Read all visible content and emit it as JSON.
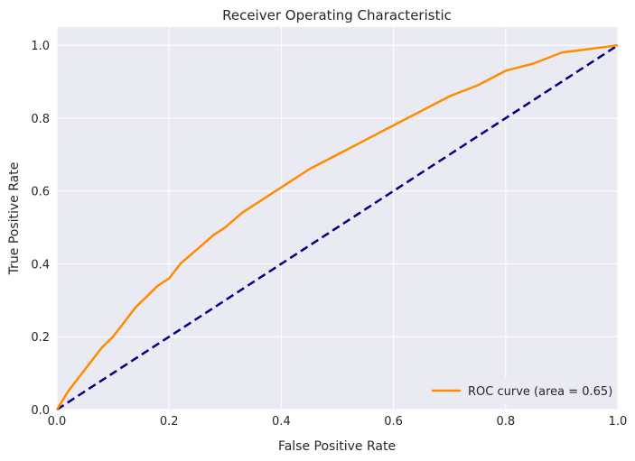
{
  "chart_data": {
    "type": "line",
    "title": "Receiver Operating Characteristic",
    "xlabel": "False Positive Rate",
    "ylabel": "True Positive Rate",
    "xlim": [
      0.0,
      1.0
    ],
    "ylim": [
      0.0,
      1.05
    ],
    "x_ticks": [
      0.0,
      0.2,
      0.4,
      0.6,
      0.8,
      1.0
    ],
    "y_ticks": [
      0.0,
      0.2,
      0.4,
      0.6,
      0.8,
      1.0
    ],
    "x_tick_labels": [
      "0.0",
      "0.2",
      "0.4",
      "0.6",
      "0.8",
      "1.0"
    ],
    "y_tick_labels": [
      "0.0",
      "0.2",
      "0.4",
      "0.6",
      "0.8",
      "1.0"
    ],
    "grid": true,
    "legend_position": "lower-right",
    "series": [
      {
        "name": "ROC curve (area = 0.65)",
        "color": "#ff8c00",
        "style": "solid",
        "x": [
          0.0,
          0.02,
          0.04,
          0.06,
          0.08,
          0.1,
          0.12,
          0.14,
          0.16,
          0.18,
          0.2,
          0.22,
          0.25,
          0.28,
          0.3,
          0.33,
          0.36,
          0.4,
          0.45,
          0.5,
          0.55,
          0.6,
          0.65,
          0.7,
          0.75,
          0.8,
          0.85,
          0.9,
          0.95,
          1.0
        ],
        "y": [
          0.0,
          0.05,
          0.09,
          0.13,
          0.17,
          0.2,
          0.24,
          0.28,
          0.31,
          0.34,
          0.36,
          0.4,
          0.44,
          0.48,
          0.5,
          0.54,
          0.57,
          0.61,
          0.66,
          0.7,
          0.74,
          0.78,
          0.82,
          0.86,
          0.89,
          0.93,
          0.95,
          0.98,
          0.99,
          1.0
        ]
      },
      {
        "name": "",
        "color": "#000080",
        "style": "dashed",
        "x": [
          0.0,
          1.0
        ],
        "y": [
          0.0,
          1.0
        ]
      }
    ],
    "legend": [
      {
        "label": "ROC curve (area = 0.65)",
        "color": "#ff8c00"
      }
    ]
  },
  "colors": {
    "plot_background": "#eaeaf2",
    "grid": "#ffffff",
    "text": "#262626"
  }
}
